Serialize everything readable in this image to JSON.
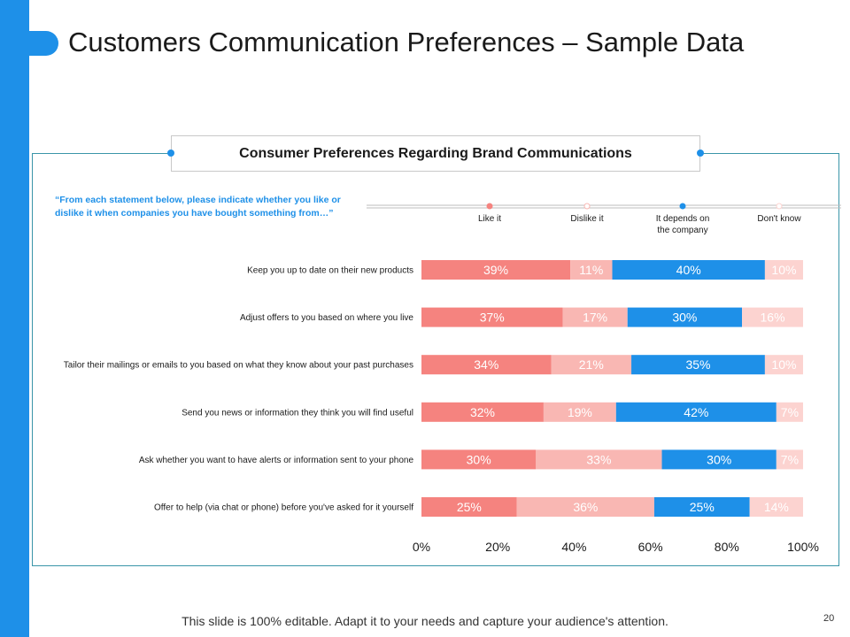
{
  "slide": {
    "title": "Customers Communication Preferences – Sample Data",
    "footer": "This slide is 100% editable. Adapt it to your needs and capture your audience's attention.",
    "page_number": "20"
  },
  "question": "“From each statement below, please indicate whether you like or dislike it when companies you have bought something from…”",
  "colors": {
    "accent": "#1e90e8",
    "like": "#f5837f",
    "dislike": "#f9b7b3",
    "depends": "#1e90e8",
    "dont_know": "#fcd3d0",
    "frame": "#3a95a8"
  },
  "chart_data": {
    "type": "bar",
    "orientation": "horizontal",
    "stacked": true,
    "title": "Consumer Preferences Regarding Brand Communications",
    "categories": [
      "Keep you up to date on their new products",
      "Adjust offers to you based on where you live",
      "Tailor their mailings or emails to you based on what they know about your past purchases",
      "Send you news or information they think you will find useful",
      "Ask whether you want to have alerts or information sent to your phone",
      "Offer to help (via chat or phone) before you've asked for it yourself"
    ],
    "series": [
      {
        "name": "Like it",
        "values": [
          39,
          37,
          34,
          32,
          30,
          25
        ]
      },
      {
        "name": "Dislike  it",
        "values": [
          11,
          17,
          21,
          19,
          33,
          36
        ]
      },
      {
        "name": "It depends on the company",
        "values": [
          40,
          30,
          35,
          42,
          30,
          25
        ]
      },
      {
        "name": "Don't know",
        "values": [
          10,
          16,
          10,
          7,
          7,
          14
        ]
      }
    ],
    "xlim": [
      0,
      100
    ],
    "xticks": [
      0,
      20,
      40,
      60,
      80,
      100
    ],
    "value_suffix": "%",
    "legend_position": "top-right"
  }
}
